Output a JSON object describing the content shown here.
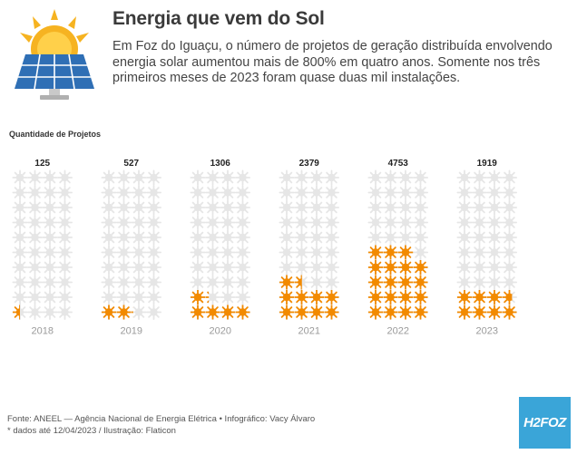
{
  "header": {
    "title": "Energia que vem do Sol",
    "subtitle": "Em Foz do Iguaçu, o número de projetos de geração distribuída envolvendo energia solar aumentou mais de 800% em quatro anos. Somente nos três primeiros meses de 2023 foram quase duas mil instalações."
  },
  "chart_label": "Quantidade de Projetos",
  "chart_data": {
    "type": "bar",
    "title": "Energia que vem do Sol",
    "ylabel": "Quantidade de Projetos",
    "categories": [
      "2018",
      "2019",
      "2020",
      "2021",
      "2022",
      "2023"
    ],
    "values": [
      125,
      527,
      1306,
      2379,
      4753,
      1919
    ],
    "units_per_icon": 250,
    "ylim": [
      0,
      5000
    ],
    "colors": {
      "filled": "#f28a00",
      "empty": "#e6e6e6"
    }
  },
  "footer": {
    "source": "Fonte: ANEEL — Agência Nacional de Energia Elétrica • Infográfico: Vacy Álvaro",
    "note": "* dados até 12/04/2023 / Ilustração: Flaticon"
  },
  "brand": {
    "logo_text": "H2FOZ"
  },
  "icons": {
    "header": "solar-panel-sun-icon",
    "unit": "sun-icon"
  }
}
